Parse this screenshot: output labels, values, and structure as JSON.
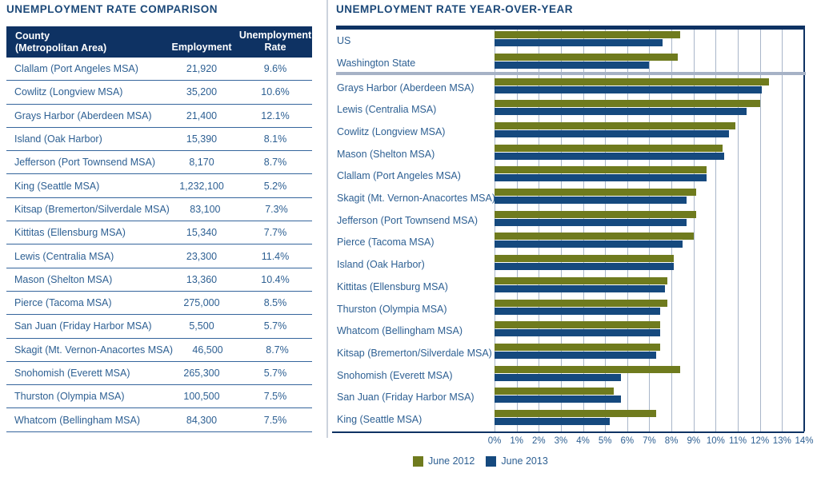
{
  "table": {
    "header": {
      "county_line1": "County",
      "county_line2": "(Metropolitan Area)",
      "employment": "Employment",
      "rate_line1": "Unemployment",
      "rate_line2": "Rate"
    }
  },
  "colors": {
    "header_navy": "#0E3263",
    "bar_green": "#6F7B1E",
    "bar_navy": "#15497E",
    "title_text": "#1B4878",
    "body_text": "#2E6093",
    "gridline": "#A9B6C9",
    "divider_gray": "#A6B2C6"
  },
  "chart_data": [
    {
      "type": "table",
      "title": "UNEMPLOYMENT RATE COMPARISON",
      "columns": [
        "County (Metropolitan Area)",
        "Employment",
        "Unemployment Rate"
      ],
      "rows": [
        [
          "Clallam (Port Angeles MSA)",
          "21,920",
          "9.6%"
        ],
        [
          "Cowlitz (Longview MSA)",
          "35,200",
          "10.6%"
        ],
        [
          "Grays Harbor (Aberdeen MSA)",
          "21,400",
          "12.1%"
        ],
        [
          "Island (Oak Harbor)",
          "15,390",
          "8.1%"
        ],
        [
          "Jefferson (Port Townsend MSA)",
          "8,170",
          "8.7%"
        ],
        [
          "King (Seattle MSA)",
          "1,232,100",
          "5.2%"
        ],
        [
          "Kitsap (Bremerton/Silverdale MSA)",
          "83,100",
          "7.3%"
        ],
        [
          "Kittitas (Ellensburg MSA)",
          "15,340",
          "7.7%"
        ],
        [
          "Lewis (Centralia MSA)",
          "23,300",
          "11.4%"
        ],
        [
          "Mason (Shelton MSA)",
          "13,360",
          "10.4%"
        ],
        [
          "Pierce (Tacoma MSA)",
          "275,000",
          "8.5%"
        ],
        [
          "San Juan (Friday Harbor MSA)",
          "5,500",
          "5.7%"
        ],
        [
          "Skagit (Mt. Vernon-Anacortes MSA)",
          "46,500",
          "8.7%"
        ],
        [
          "Snohomish (Everett MSA)",
          "265,300",
          "5.7%"
        ],
        [
          "Thurston (Olympia MSA)",
          "100,500",
          "7.5%"
        ],
        [
          "Whatcom (Bellingham MSA)",
          "84,300",
          "7.5%"
        ]
      ]
    },
    {
      "type": "bar",
      "orientation": "horizontal",
      "title": "UNEMPLOYMENT RATE YEAR-OVER-YEAR",
      "categories": [
        "US",
        "Washington State",
        "Grays Harbor (Aberdeen MSA)",
        "Lewis (Centralia MSA)",
        "Cowlitz (Longview MSA)",
        "Mason (Shelton MSA)",
        "Clallam (Port Angeles MSA)",
        "Skagit (Mt. Vernon-Anacortes MSA)",
        "Jefferson (Port Townsend MSA)",
        "Pierce (Tacoma MSA)",
        "Island (Oak Harbor)",
        "Kittitas (Ellensburg MSA)",
        "Thurston (Olympia MSA)",
        "Whatcom (Bellingham MSA)",
        "Kitsap (Bremerton/Silverdale MSA)",
        "Snohomish (Everett MSA)",
        "San Juan (Friday Harbor MSA)",
        "King (Seattle MSA)"
      ],
      "series": [
        {
          "name": "June 2012",
          "color": "#6F7B1E",
          "values": [
            8.4,
            8.3,
            12.4,
            12.0,
            10.9,
            10.3,
            9.6,
            9.1,
            9.1,
            9.0,
            8.1,
            7.8,
            7.8,
            7.5,
            7.5,
            8.4,
            5.4,
            7.3
          ]
        },
        {
          "name": "June 2013",
          "color": "#15497E",
          "values": [
            7.6,
            7.0,
            12.1,
            11.4,
            10.6,
            10.4,
            9.6,
            8.7,
            8.7,
            8.5,
            8.1,
            7.7,
            7.5,
            7.5,
            7.3,
            5.7,
            5.7,
            5.2
          ]
        }
      ],
      "xlim": [
        0,
        14
      ],
      "x_ticks": [
        "0%",
        "1%",
        "2%",
        "3%",
        "4%",
        "5%",
        "6%",
        "7%",
        "8%",
        "9%",
        "10%",
        "11%",
        "12%",
        "13%",
        "14%"
      ],
      "grid": true,
      "legend_position": "bottom",
      "group_separator_after": "Washington State"
    }
  ]
}
